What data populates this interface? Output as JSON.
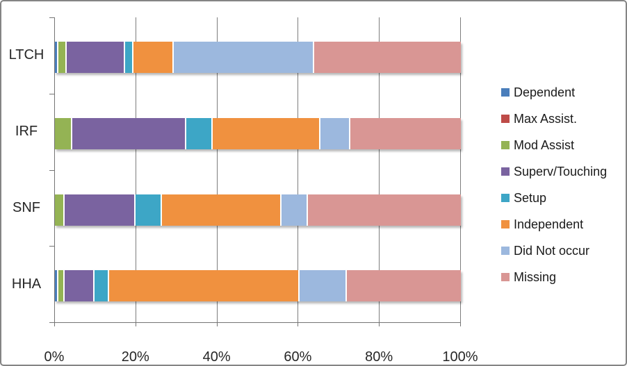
{
  "chart_data": {
    "type": "bar",
    "orientation": "horizontal",
    "stacked": true,
    "title": "",
    "xlabel": "",
    "ylabel": "",
    "grid": true,
    "legend_position": "right",
    "categories": [
      "LTCH",
      "IRF",
      "SNF",
      "HHA"
    ],
    "series": [
      {
        "name": "Dependent",
        "color": "#4A7EBB",
        "values": [
          0.5,
          0,
          0,
          0.5
        ]
      },
      {
        "name": "Max Assist.",
        "color": "#BE4B48",
        "values": [
          0,
          0,
          0,
          0
        ]
      },
      {
        "name": "Mod Assist",
        "color": "#94B354",
        "values": [
          2,
          4,
          2,
          1.5
        ]
      },
      {
        "name": "Superv/Touching",
        "color": "#7A63A0",
        "values": [
          14.5,
          28,
          17.5,
          7.5
        ]
      },
      {
        "name": "Setup",
        "color": "#3DA6C6",
        "values": [
          2,
          6.5,
          6.5,
          3.5
        ]
      },
      {
        "name": "Independent",
        "color": "#F0913F",
        "values": [
          10,
          26.5,
          29.5,
          47
        ]
      },
      {
        "name": "Did Not occur",
        "color": "#9CB8DE",
        "values": [
          34.5,
          7.5,
          6.5,
          11.5
        ]
      },
      {
        "name": "Missing",
        "color": "#D99694",
        "values": [
          36.5,
          27.5,
          38,
          28.5
        ]
      }
    ],
    "x_axis": {
      "range": [
        0,
        100
      ],
      "ticks": [
        {
          "label": "0%",
          "value": 0
        },
        {
          "label": "20%",
          "value": 20
        },
        {
          "label": "40%",
          "value": 40
        },
        {
          "label": "60%",
          "value": 60
        },
        {
          "label": "80%",
          "value": 80
        },
        {
          "label": "100%",
          "value": 100
        }
      ]
    },
    "colors": {
      "axis": "#747474",
      "gridline": "#7d7d7d",
      "text": "#262626",
      "frame_border": "#848484"
    }
  }
}
